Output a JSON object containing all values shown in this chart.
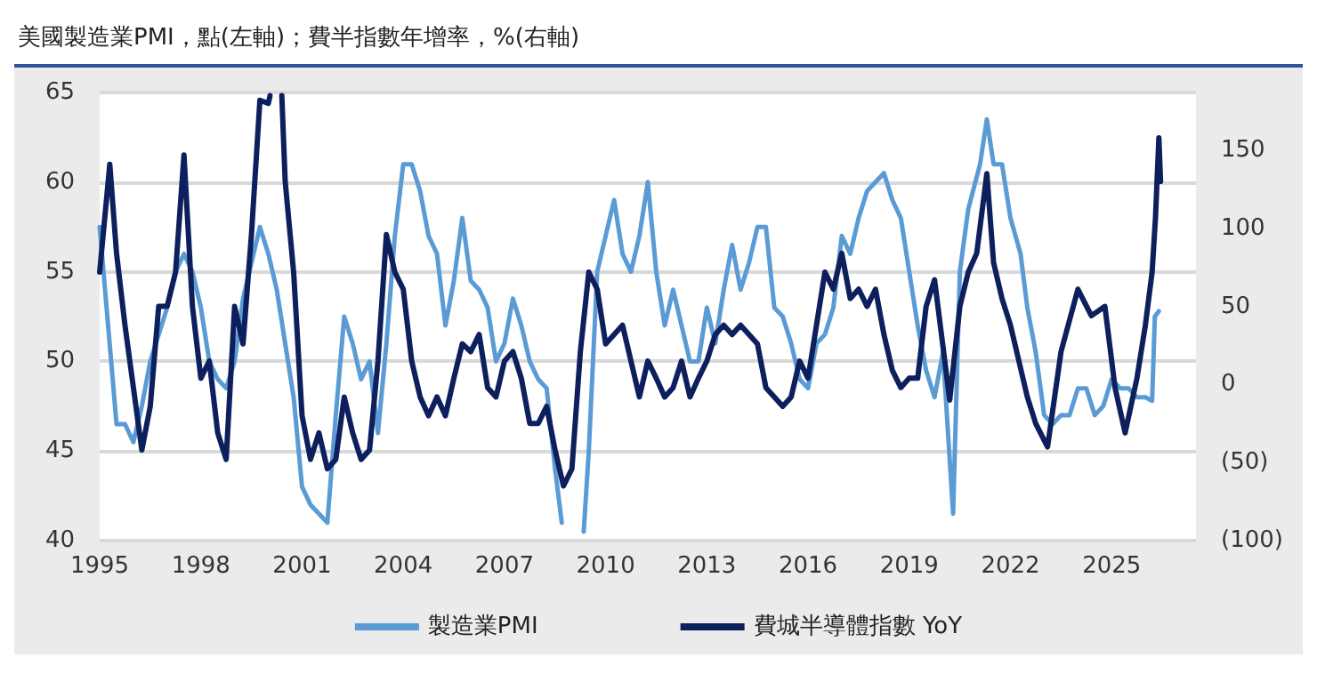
{
  "chart_data": {
    "type": "line",
    "title": "美國製造業PMI，點(左軸)；費半指數年增率，%(右軸)",
    "xlim": [
      1995,
      2027.5
    ],
    "xticks": [
      1995,
      1998,
      2001,
      2004,
      2007,
      2010,
      2013,
      2016,
      2019,
      2022,
      2025
    ],
    "ylim": [
      40,
      65
    ],
    "yticks": [
      40,
      45,
      50,
      55,
      60,
      65
    ],
    "y2lim": [
      -100,
      187
    ],
    "y2ticks": [
      {
        "value": -100,
        "label": "(100)"
      },
      {
        "value": -50,
        "label": "(50)"
      },
      0,
      50,
      100,
      150
    ],
    "grid": "y",
    "legend": "bottom",
    "marker": "none",
    "line_style": "solid",
    "series": [
      {
        "name": "製造業PMI",
        "color": "#5b9bd5",
        "x": [
          1995,
          1995.25,
          1995.5,
          1995.75,
          1996,
          1996.25,
          1996.5,
          1996.75,
          1997,
          1997.25,
          1997.5,
          1997.75,
          1998,
          1998.25,
          1998.5,
          1998.75,
          1999,
          1999.25,
          1999.5,
          1999.75,
          2000,
          2000.25,
          2000.5,
          2000.75,
          2001,
          2001.25,
          2001.5,
          2001.75,
          2002,
          2002.25,
          2002.5,
          2002.75,
          2003,
          2003.25,
          2003.5,
          2003.75,
          2004,
          2004.25,
          2004.5,
          2004.75,
          2005,
          2005.25,
          2005.5,
          2005.75,
          2006,
          2006.25,
          2006.5,
          2006.75,
          2007,
          2007.25,
          2007.5,
          2007.75,
          2008,
          2008.25,
          2008.5,
          2008.7,
          2008.85,
          2009.35,
          2009.5,
          2009.75,
          2010,
          2010.25,
          2010.5,
          2010.75,
          2011,
          2011.25,
          2011.5,
          2011.75,
          2012,
          2012.25,
          2012.5,
          2012.75,
          2013,
          2013.25,
          2013.5,
          2013.75,
          2014,
          2014.25,
          2014.5,
          2014.75,
          2015,
          2015.25,
          2015.5,
          2015.75,
          2016,
          2016.25,
          2016.5,
          2016.75,
          2017,
          2017.25,
          2017.5,
          2017.75,
          2018,
          2018.25,
          2018.5,
          2018.75,
          2019,
          2019.25,
          2019.5,
          2019.75,
          2020,
          2020.3,
          2020.5,
          2020.75,
          2021.1,
          2021.3,
          2021.5,
          2021.75,
          2022,
          2022.3,
          2022.5,
          2022.75,
          2023,
          2023.25,
          2023.5,
          2023.75,
          2024,
          2024.25,
          2024.5,
          2024.75,
          2025,
          2025.25,
          2025.5,
          2025.75,
          2026,
          2026.2,
          2026.28,
          2026.4
        ],
        "values": [
          57.5,
          52,
          46.5,
          46.5,
          45.5,
          47.5,
          50,
          51.5,
          53,
          55,
          56,
          55,
          53,
          50,
          49,
          48.5,
          50,
          53.5,
          55.5,
          57.5,
          56,
          54,
          51,
          48,
          43,
          42,
          41.5,
          41,
          47,
          52.5,
          51,
          49,
          50,
          46,
          51,
          57,
          61,
          61,
          59.5,
          57,
          56,
          52,
          54.5,
          58,
          54.5,
          54,
          53,
          50,
          51,
          53.5,
          52,
          50,
          49,
          48.5,
          44,
          41,
          null,
          40.5,
          45,
          55,
          57,
          59,
          56,
          55,
          57,
          60,
          55,
          52,
          54,
          52,
          50,
          50,
          53,
          51,
          54,
          56.5,
          54,
          55.5,
          57.5,
          57.5,
          53,
          52.5,
          51,
          49,
          48.5,
          51,
          51.5,
          53,
          57,
          56,
          58,
          59.5,
          60,
          60.5,
          59,
          58,
          55,
          52,
          49.5,
          48,
          50.5,
          41.5,
          55,
          58.5,
          61,
          63.5,
          61,
          61,
          58,
          56,
          53,
          50.5,
          47,
          46.5,
          47,
          47,
          48.5,
          48.5,
          47,
          47.5,
          49,
          48.5,
          48.5,
          48,
          48,
          47.8,
          52.5,
          52.8
        ]
      },
      {
        "name": "費城半導體指數 YoY",
        "color": "#0d1f5c",
        "axis": "y2",
        "x": [
          1995,
          1995.3,
          1995.5,
          1995.75,
          1996,
          1996.25,
          1996.5,
          1996.75,
          1997,
          1997.25,
          1997.5,
          1997.75,
          1998,
          1998.25,
          1998.5,
          1998.75,
          1999,
          1999.25,
          1999.5,
          1999.75,
          2000,
          2000.05,
          2000.1,
          2000.35,
          2000.4,
          2000.5,
          2000.75,
          2001,
          2001.25,
          2001.5,
          2001.75,
          2002,
          2002.25,
          2002.5,
          2002.75,
          2003,
          2003.25,
          2003.5,
          2003.75,
          2004,
          2004.25,
          2004.5,
          2004.75,
          2005,
          2005.25,
          2005.5,
          2005.75,
          2006,
          2006.25,
          2006.5,
          2006.75,
          2007,
          2007.25,
          2007.5,
          2007.75,
          2008,
          2008.25,
          2008.5,
          2008.75,
          2009,
          2009.25,
          2009.5,
          2009.75,
          2010,
          2010.25,
          2010.5,
          2010.75,
          2011,
          2011.25,
          2011.5,
          2011.75,
          2012,
          2012.25,
          2012.5,
          2012.75,
          2013,
          2013.25,
          2013.5,
          2013.75,
          2014,
          2014.25,
          2014.5,
          2014.75,
          2015,
          2015.25,
          2015.5,
          2015.75,
          2016,
          2016.25,
          2016.5,
          2016.75,
          2017,
          2017.25,
          2017.5,
          2017.75,
          2018,
          2018.25,
          2018.5,
          2018.75,
          2019,
          2019.25,
          2019.5,
          2019.75,
          2020.2,
          2020.5,
          2020.75,
          2021,
          2021.3,
          2021.5,
          2021.75,
          2022,
          2022.5,
          2022.75,
          2023.1,
          2023.5,
          2024,
          2024.4,
          2024.8,
          2025.1,
          2025.4,
          2025.75,
          2026,
          2026.2,
          2026.3,
          2026.4,
          2026.45
        ],
        "values": [
          72,
          141,
          84,
          38,
          -2,
          -42,
          -14,
          50,
          50,
          72,
          147,
          50,
          4,
          15,
          -31,
          -48,
          50,
          26,
          96,
          182,
          180,
          185,
          null,
          null,
          185,
          130,
          72,
          -20,
          -48,
          -31,
          -54,
          -48,
          -8,
          -31,
          -48,
          -42,
          15,
          96,
          72,
          61,
          15,
          -8,
          -20,
          -8,
          -20,
          4,
          26,
          21,
          32,
          -2,
          -8,
          15,
          21,
          4,
          -25,
          -25,
          -14,
          -42,
          -65,
          -54,
          21,
          72,
          61,
          26,
          32,
          38,
          15,
          -8,
          15,
          4,
          -8,
          -2,
          15,
          -8,
          4,
          15,
          32,
          38,
          32,
          38,
          32,
          26,
          -2,
          -8,
          -14,
          -8,
          15,
          4,
          38,
          72,
          61,
          84,
          55,
          61,
          50,
          61,
          32,
          9,
          -2,
          4,
          4,
          50,
          67,
          -10,
          50,
          72,
          84,
          135,
          78,
          55,
          38,
          -8,
          -25,
          -40,
          21,
          61,
          44,
          50,
          -2,
          -31,
          4,
          38,
          72,
          107,
          158,
          130
        ]
      }
    ]
  }
}
